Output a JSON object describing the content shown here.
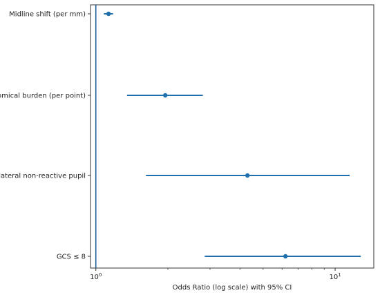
{
  "chart_data": {
    "type": "scatter",
    "subtype": "forest-plot",
    "title": "",
    "xlabel": "Odds Ratio (log scale) with 95% CI",
    "ylabel": "",
    "x_scale": "log",
    "xlim": [
      0.95,
      14.5
    ],
    "x_ticks": [
      {
        "value": 1,
        "label": "10^0",
        "base": "10",
        "exp": "0"
      },
      {
        "value": 10,
        "label": "10^1",
        "base": "10",
        "exp": "1"
      }
    ],
    "reference_line": {
      "x": 1,
      "color": "#1f5f99"
    },
    "grid": false,
    "legend": "none",
    "color": "#1f6fad",
    "categories": [
      "Midline shift (per mm)",
      "Anatomical burden (per point)",
      "Bilateral non-reactive pupil",
      "GCS ≤ 8"
    ],
    "points": [
      {
        "label": "Midline shift (per mm)",
        "or": 1.13,
        "ci_low": 1.08,
        "ci_high": 1.18
      },
      {
        "label": "Anatomical burden (per point)",
        "or": 1.95,
        "ci_low": 1.35,
        "ci_high": 2.8
      },
      {
        "label": "Bilateral non-reactive pupil",
        "or": 4.3,
        "ci_low": 1.62,
        "ci_high": 11.5
      },
      {
        "label": "GCS ≤ 8",
        "or": 6.2,
        "ci_low": 2.85,
        "ci_high": 12.8
      }
    ]
  }
}
